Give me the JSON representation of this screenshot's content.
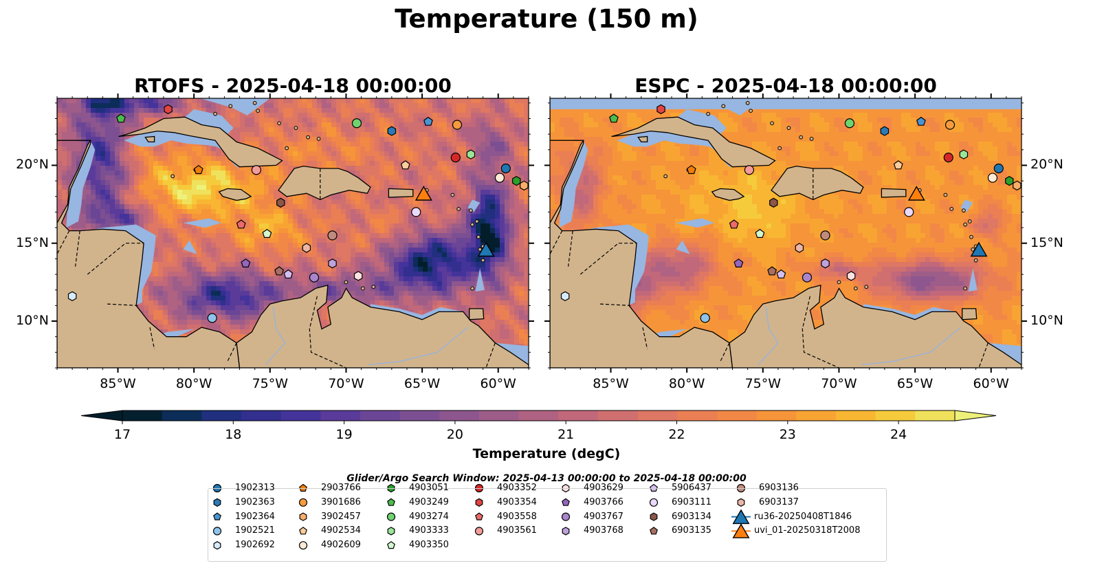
{
  "figure": {
    "title": "Temperature (150 m)"
  },
  "panels": [
    {
      "title": "RTOFS - 2025-04-18 00:00:00",
      "model": "RTOFS"
    },
    {
      "title": "ESPC - 2025-04-18 00:00:00",
      "model": "ESPC"
    }
  ],
  "axes": {
    "x_ticks": [
      "85°W",
      "80°W",
      "75°W",
      "70°W",
      "65°W",
      "60°W"
    ],
    "x_tick_values": [
      -85,
      -80,
      -75,
      -70,
      -65,
      -60
    ],
    "y_ticks": [
      "20°N",
      "15°N",
      "10°N"
    ],
    "y_tick_values": [
      20,
      15,
      10
    ],
    "lon_range": [
      -89,
      -58
    ],
    "lat_range": [
      7,
      24.3
    ]
  },
  "colorbar": {
    "label": "Temperature (degC)",
    "ticks": [
      "17",
      "18",
      "19",
      "20",
      "21",
      "22",
      "23",
      "24"
    ],
    "tick_values": [
      17,
      18,
      19,
      20,
      21,
      22,
      23,
      24
    ],
    "range": [
      16.75,
      24.5
    ],
    "colors": [
      "#04202f",
      "#0b2d58",
      "#202f7e",
      "#322f8f",
      "#44339a",
      "#5a3b9a",
      "#6b4596",
      "#7c4f92",
      "#8d568e",
      "#9e5d89",
      "#b06282",
      "#c1687a",
      "#d06f6f",
      "#de7763",
      "#ea7f54",
      "#f28846",
      "#f6943a",
      "#f8a433",
      "#f8b632",
      "#f5cb3c",
      "#efe15c"
    ],
    "under_color": "#041d2b",
    "over_color": "#edf17a"
  },
  "legend": {
    "title": "Glider/Argo Search Window: 2025-04-13 00:00:00 to 2025-04-18 00:00:00",
    "columns": [
      [
        {
          "label": "1902313",
          "shape": "circle",
          "color": "#1f77b4"
        },
        {
          "label": "1902363",
          "shape": "hexagon",
          "color": "#2a7ab9"
        },
        {
          "label": "1902364",
          "shape": "pentagon",
          "color": "#4a94d0"
        },
        {
          "label": "1902521",
          "shape": "circle",
          "color": "#8fc3ea"
        },
        {
          "label": "1902692",
          "shape": "hexagon",
          "color": "#d6ebfb"
        }
      ],
      [
        {
          "label": "2903766",
          "shape": "pentagon",
          "color": "#f07d0a"
        },
        {
          "label": "3901686",
          "shape": "circle",
          "color": "#f59b3f"
        },
        {
          "label": "3902457",
          "shape": "hexagon",
          "color": "#f8ae6a"
        },
        {
          "label": "4902534",
          "shape": "pentagon",
          "color": "#fbcc9c"
        },
        {
          "label": "4902609",
          "shape": "circle",
          "color": "#feead6"
        }
      ],
      [
        {
          "label": "4903051",
          "shape": "hexagon",
          "color": "#2ca02c"
        },
        {
          "label": "4903249",
          "shape": "pentagon",
          "color": "#4cbb4c"
        },
        {
          "label": "4903274",
          "shape": "circle",
          "color": "#6fd36f"
        },
        {
          "label": "4903333",
          "shape": "hexagon",
          "color": "#9ae59a"
        },
        {
          "label": "4903350",
          "shape": "pentagon",
          "color": "#d3f7cf"
        }
      ],
      [
        {
          "label": "4903352",
          "shape": "circle",
          "color": "#d62728"
        },
        {
          "label": "4903354",
          "shape": "hexagon",
          "color": "#e04444"
        },
        {
          "label": "4903558",
          "shape": "pentagon",
          "color": "#ec6a6a"
        },
        {
          "label": "4903561",
          "shape": "circle",
          "color": "#f49c9c"
        }
      ],
      [
        {
          "label": "4903629",
          "shape": "hexagon",
          "color": "#fde2e2"
        },
        {
          "label": "4903766",
          "shape": "pentagon",
          "color": "#9467bd"
        },
        {
          "label": "4903767",
          "shape": "circle",
          "color": "#a985cc"
        },
        {
          "label": "4903768",
          "shape": "hexagon",
          "color": "#bea2db"
        }
      ],
      [
        {
          "label": "5906437",
          "shape": "pentagon",
          "color": "#d4bdf0"
        },
        {
          "label": "6903111",
          "shape": "circle",
          "color": "#ead9fb"
        },
        {
          "label": "6903134",
          "shape": "hexagon",
          "color": "#8c564b"
        },
        {
          "label": "6903135",
          "shape": "pentagon",
          "color": "#a86f63"
        }
      ],
      [
        {
          "label": "6903136",
          "shape": "circle",
          "color": "#c08b7f"
        },
        {
          "label": "6903137",
          "shape": "hexagon",
          "color": "#ecb5a8"
        },
        {
          "label": "ru36-20250408T1846",
          "shape": "triangle",
          "color": "#1f77b4"
        },
        {
          "label": "uvi_01-20250318T2008",
          "shape": "triangle",
          "color": "#ff7f0e"
        }
      ]
    ]
  },
  "floats": [
    {
      "id": "1902313",
      "lon": -59.5,
      "lat": 19.8
    },
    {
      "id": "1902363",
      "lon": -67.0,
      "lat": 22.2
    },
    {
      "id": "1902364",
      "lon": -64.6,
      "lat": 22.8
    },
    {
      "id": "1902521",
      "lon": -78.8,
      "lat": 10.2
    },
    {
      "id": "1902692",
      "lon": -88.0,
      "lat": 11.6
    },
    {
      "id": "2903766",
      "lon": -79.7,
      "lat": 19.7
    },
    {
      "id": "3901686",
      "lon": -62.7,
      "lat": 22.6
    },
    {
      "id": "3902457",
      "lon": -58.3,
      "lat": 18.7
    },
    {
      "id": "4902534",
      "lon": -66.1,
      "lat": 20.0
    },
    {
      "id": "4902609",
      "lon": -59.9,
      "lat": 19.2
    },
    {
      "id": "4903051",
      "lon": -58.8,
      "lat": 19.0
    },
    {
      "id": "4903249",
      "lon": -84.8,
      "lat": 23.0
    },
    {
      "id": "4903274",
      "lon": -69.3,
      "lat": 22.7
    },
    {
      "id": "4903333",
      "lon": -61.8,
      "lat": 20.7
    },
    {
      "id": "4903350",
      "lon": -75.2,
      "lat": 15.6
    },
    {
      "id": "4903352",
      "lon": -62.8,
      "lat": 20.5
    },
    {
      "id": "4903354",
      "lon": -81.7,
      "lat": 23.6
    },
    {
      "id": "4903558",
      "lon": -76.9,
      "lat": 16.2
    },
    {
      "id": "4903561",
      "lon": -75.9,
      "lat": 19.7
    },
    {
      "id": "4903629",
      "lon": -69.2,
      "lat": 12.9
    },
    {
      "id": "4903766",
      "lon": -76.6,
      "lat": 13.7
    },
    {
      "id": "4903767",
      "lon": -72.1,
      "lat": 12.8
    },
    {
      "id": "4903768",
      "lon": -70.9,
      "lat": 13.7
    },
    {
      "id": "5906437",
      "lon": -73.8,
      "lat": 13.0
    },
    {
      "id": "6903111",
      "lon": -65.4,
      "lat": 17.0
    },
    {
      "id": "6903134",
      "lon": -74.3,
      "lat": 17.6
    },
    {
      "id": "6903135",
      "lon": -74.4,
      "lat": 13.2
    },
    {
      "id": "6903136",
      "lon": -70.9,
      "lat": 15.5
    },
    {
      "id": "6903137",
      "lon": -72.6,
      "lat": 14.7
    }
  ],
  "gliders": [
    {
      "id": "ru36-20250408T1846",
      "lon": -60.8,
      "lat": 14.6
    },
    {
      "id": "uvi_01-20250318T2008",
      "lon": -64.9,
      "lat": 18.2
    }
  ],
  "map_colors": {
    "land": "#d2b48c",
    "shallow_water": "#97b6e1",
    "coast": "#000000"
  }
}
